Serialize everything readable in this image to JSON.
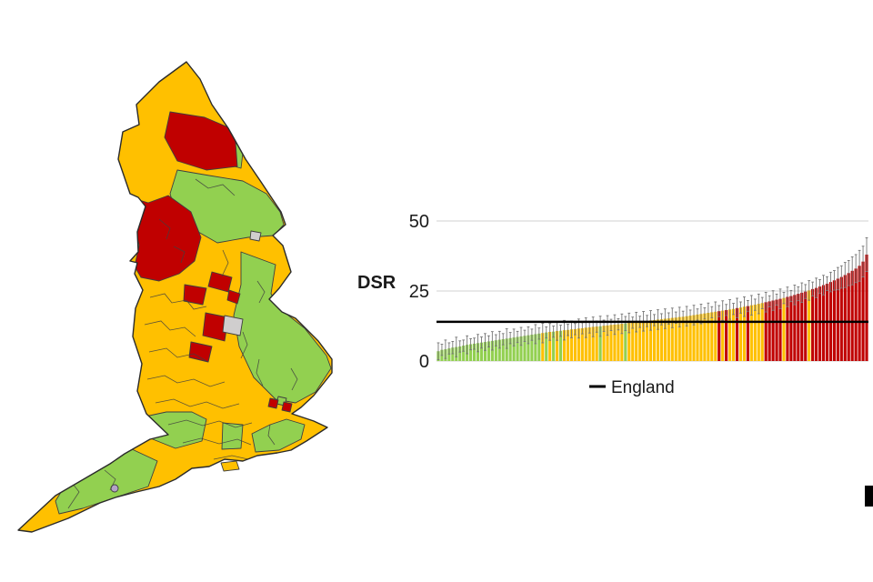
{
  "page": {
    "background": "#ffffff"
  },
  "colors": {
    "green": "#92d050",
    "amber": "#ffc000",
    "red": "#c00000",
    "map_gray": "#d0cece",
    "purple": "#b3a2c7",
    "border": "#3f3f3f",
    "grid": "#d9d9d9",
    "whisker": "#757575",
    "england_line": "#000000",
    "text": "#1a1a1a"
  },
  "map": {
    "type": "choropleth",
    "area": "England",
    "color_classes": [
      "green",
      "amber",
      "red",
      "gray",
      "purple"
    ]
  },
  "chart_data": {
    "type": "bar",
    "title": "",
    "xlabel": "",
    "ylabel": "DSR",
    "ylim": [
      0,
      50
    ],
    "yticks": [
      0,
      25,
      50
    ],
    "grid": "horizontal",
    "legend_position": "bottom",
    "sorted": "ascending",
    "error_bars": true,
    "reference_line": {
      "label": "England",
      "value": 14
    },
    "color_code_meaning": {
      "g": "green",
      "a": "amber",
      "r": "red"
    },
    "bars": [
      [
        3.5,
        6.5,
        "g"
      ],
      [
        4.0,
        6.0,
        "g"
      ],
      [
        4.2,
        7.5,
        "g"
      ],
      [
        4.5,
        6.5,
        "g"
      ],
      [
        4.8,
        7.0,
        "g"
      ],
      [
        5.0,
        8.5,
        "g"
      ],
      [
        5.2,
        7.2,
        "g"
      ],
      [
        5.5,
        7.5,
        "g"
      ],
      [
        5.8,
        9.0,
        "g"
      ],
      [
        6.0,
        8.0,
        "g"
      ],
      [
        6.2,
        8.2,
        "g"
      ],
      [
        6.4,
        9.5,
        "g"
      ],
      [
        6.6,
        8.6,
        "g"
      ],
      [
        6.8,
        9.8,
        "g"
      ],
      [
        7.0,
        9.0,
        "g"
      ],
      [
        7.2,
        10.5,
        "g"
      ],
      [
        7.4,
        9.4,
        "g"
      ],
      [
        7.6,
        10.6,
        "g"
      ],
      [
        7.8,
        9.8,
        "g"
      ],
      [
        8.0,
        11.5,
        "g"
      ],
      [
        8.2,
        10.2,
        "g"
      ],
      [
        8.4,
        11.4,
        "g"
      ],
      [
        8.6,
        10.6,
        "g"
      ],
      [
        8.8,
        12.0,
        "g"
      ],
      [
        9.0,
        11.0,
        "g"
      ],
      [
        9.2,
        12.2,
        "g"
      ],
      [
        9.4,
        11.4,
        "g"
      ],
      [
        9.6,
        13.0,
        "g"
      ],
      [
        9.8,
        11.8,
        "g"
      ],
      [
        10.0,
        13.5,
        "a"
      ],
      [
        10.2,
        12.2,
        "g"
      ],
      [
        10.4,
        13.4,
        "a"
      ],
      [
        10.5,
        12.5,
        "g"
      ],
      [
        10.7,
        14.0,
        "a"
      ],
      [
        10.8,
        12.8,
        "g"
      ],
      [
        11.0,
        14.5,
        "a"
      ],
      [
        11.1,
        13.1,
        "a"
      ],
      [
        11.3,
        14.3,
        "a"
      ],
      [
        11.4,
        13.4,
        "a"
      ],
      [
        11.6,
        15.0,
        "a"
      ],
      [
        11.7,
        13.7,
        "a"
      ],
      [
        11.9,
        15.4,
        "a"
      ],
      [
        12.0,
        14.0,
        "a"
      ],
      [
        12.2,
        15.7,
        "a"
      ],
      [
        12.3,
        14.3,
        "a"
      ],
      [
        12.4,
        16.0,
        "g"
      ],
      [
        12.6,
        14.6,
        "a"
      ],
      [
        12.7,
        16.2,
        "a"
      ],
      [
        12.9,
        14.9,
        "a"
      ],
      [
        13.0,
        16.5,
        "a"
      ],
      [
        13.1,
        15.1,
        "a"
      ],
      [
        13.3,
        16.8,
        "a"
      ],
      [
        13.4,
        15.9,
        "g"
      ],
      [
        13.6,
        17.1,
        "a"
      ],
      [
        13.7,
        15.7,
        "a"
      ],
      [
        13.9,
        17.4,
        "a"
      ],
      [
        14.0,
        16.0,
        "a"
      ],
      [
        14.2,
        17.7,
        "a"
      ],
      [
        14.3,
        16.3,
        "a"
      ],
      [
        14.5,
        18.0,
        "a"
      ],
      [
        14.6,
        16.6,
        "a"
      ],
      [
        14.8,
        18.3,
        "a"
      ],
      [
        14.9,
        16.9,
        "a"
      ],
      [
        15.1,
        18.6,
        "a"
      ],
      [
        15.2,
        17.2,
        "a"
      ],
      [
        15.4,
        18.9,
        "a"
      ],
      [
        15.5,
        17.5,
        "a"
      ],
      [
        15.7,
        19.2,
        "a"
      ],
      [
        15.8,
        17.8,
        "a"
      ],
      [
        16.0,
        19.5,
        "a"
      ],
      [
        16.2,
        18.2,
        "a"
      ],
      [
        16.4,
        19.9,
        "a"
      ],
      [
        16.6,
        18.6,
        "a"
      ],
      [
        16.8,
        20.3,
        "a"
      ],
      [
        17.0,
        19.0,
        "a"
      ],
      [
        17.2,
        20.7,
        "a"
      ],
      [
        17.4,
        19.4,
        "a"
      ],
      [
        17.6,
        21.1,
        "a"
      ],
      [
        17.8,
        19.8,
        "r"
      ],
      [
        18.0,
        21.5,
        "a"
      ],
      [
        18.2,
        20.2,
        "r"
      ],
      [
        18.4,
        21.9,
        "a"
      ],
      [
        18.6,
        20.6,
        "a"
      ],
      [
        18.9,
        22.4,
        "r"
      ],
      [
        19.1,
        21.1,
        "a"
      ],
      [
        19.4,
        22.9,
        "a"
      ],
      [
        19.6,
        21.6,
        "r"
      ],
      [
        19.9,
        23.4,
        "a"
      ],
      [
        20.1,
        22.1,
        "a"
      ],
      [
        20.4,
        23.9,
        "a"
      ],
      [
        20.7,
        22.7,
        "a"
      ],
      [
        21.0,
        24.5,
        "r"
      ],
      [
        21.3,
        23.3,
        "r"
      ],
      [
        21.6,
        25.1,
        "r"
      ],
      [
        21.9,
        23.9,
        "r"
      ],
      [
        22.2,
        25.7,
        "r"
      ],
      [
        22.5,
        24.5,
        "a"
      ],
      [
        22.9,
        26.4,
        "r"
      ],
      [
        23.2,
        25.2,
        "r"
      ],
      [
        23.6,
        27.1,
        "r"
      ],
      [
        24.0,
        26.5,
        "r"
      ],
      [
        24.4,
        27.9,
        "r"
      ],
      [
        24.8,
        27.3,
        "r"
      ],
      [
        25.2,
        28.7,
        "a"
      ],
      [
        25.7,
        28.2,
        "r"
      ],
      [
        26.1,
        29.6,
        "r"
      ],
      [
        26.6,
        29.1,
        "r"
      ],
      [
        27.1,
        30.6,
        "r"
      ],
      [
        27.6,
        30.1,
        "r"
      ],
      [
        28.2,
        31.7,
        "r"
      ],
      [
        28.8,
        32.3,
        "r"
      ],
      [
        29.4,
        33.4,
        "r"
      ],
      [
        30.0,
        34.0,
        "r"
      ],
      [
        30.7,
        35.2,
        "r"
      ],
      [
        31.4,
        35.9,
        "r"
      ],
      [
        32.2,
        37.2,
        "r"
      ],
      [
        33.0,
        38.0,
        "r"
      ],
      [
        34.0,
        39.5,
        "r"
      ],
      [
        35.5,
        41.0,
        "r"
      ],
      [
        38.0,
        44.0,
        "r"
      ]
    ]
  }
}
